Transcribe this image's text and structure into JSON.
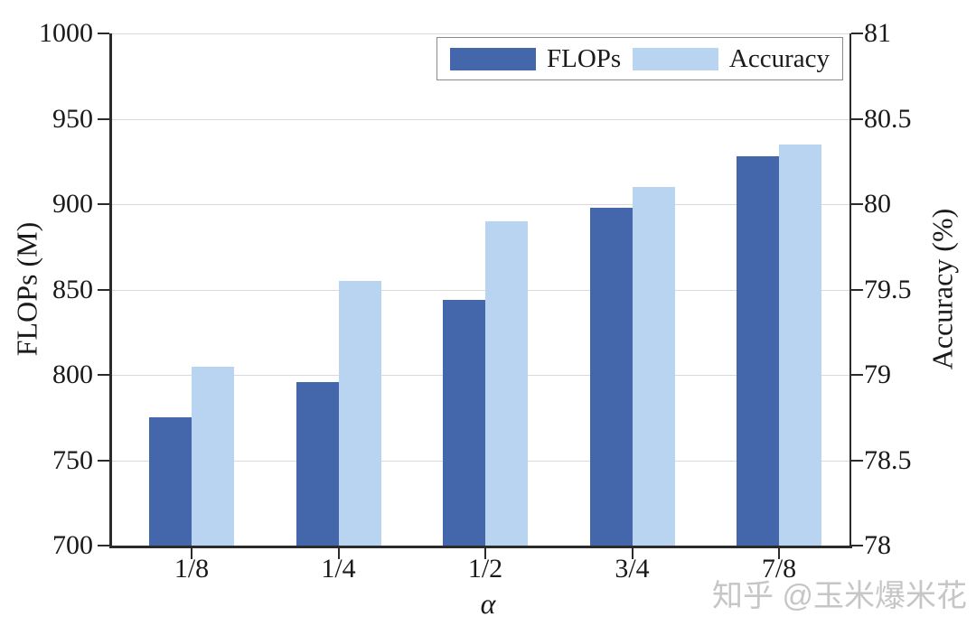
{
  "chart_data": {
    "type": "bar",
    "categories": [
      "1/8",
      "1/4",
      "1/2",
      "3/4",
      "7/8"
    ],
    "xlabel": "α",
    "series": [
      {
        "name": "FLOPs",
        "axis": "left",
        "color": "#4467AB",
        "values": [
          775,
          796,
          844,
          898,
          928
        ]
      },
      {
        "name": "Accuracy",
        "axis": "right",
        "color": "#B9D4F0",
        "values": [
          79.05,
          79.55,
          79.9,
          80.1,
          80.35
        ]
      }
    ],
    "left_axis": {
      "label": "FLOPs (M)",
      "min": 700,
      "max": 1000,
      "ticks": [
        1000,
        950,
        900,
        850,
        800,
        750,
        700
      ]
    },
    "right_axis": {
      "label": "Accuracy (%)",
      "min": 78,
      "max": 81,
      "ticks": [
        81,
        80.5,
        80,
        79.5,
        79,
        78.5,
        78
      ]
    },
    "grid": true,
    "legend_position": "top-right"
  },
  "watermark": {
    "text": "知乎 @玉米爆米花",
    "color": "#C6C6C6"
  },
  "colors": {
    "flops_bar": "#4467AB",
    "accuracy_bar": "#B9D4F0",
    "axis": "#2B2B2B",
    "gridline": "#D9D9D9",
    "background": "#FFFFFF"
  }
}
